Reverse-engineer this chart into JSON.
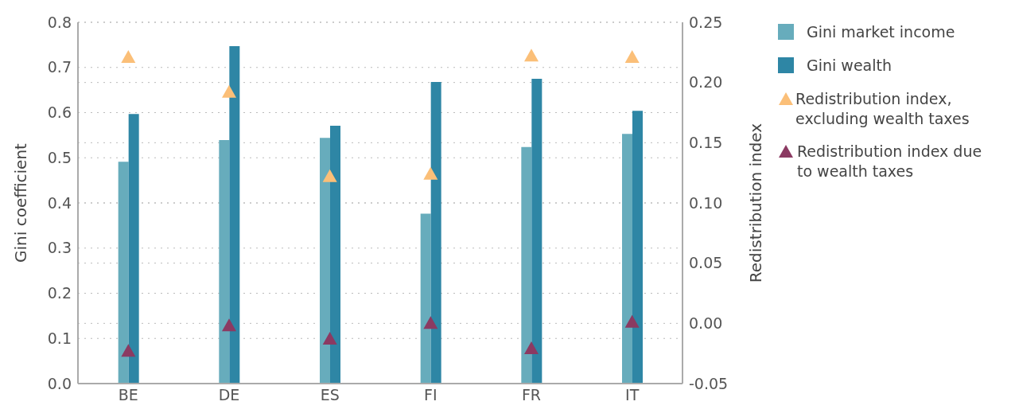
{
  "chart_data": {
    "type": "bar",
    "ylabel": "Gini coefficient",
    "y2label": "Redistribution index",
    "categories": [
      "BE",
      "DE",
      "ES",
      "FI",
      "FR",
      "IT"
    ],
    "series": [
      {
        "name": "Gini market income",
        "color": "#67acbc",
        "values": [
          0.491,
          0.539,
          0.544,
          0.376,
          0.524,
          0.553
        ]
      },
      {
        "name": "Gini wealth",
        "color": "#2e86a5",
        "values": [
          0.597,
          0.747,
          0.571,
          0.668,
          0.675,
          0.604
        ]
      },
      {
        "name": "Redistribution index, excluding wealth taxes",
        "type": "scatter",
        "axis": "y2",
        "color": "#fbbf78",
        "values": [
          0.221,
          0.192,
          0.122,
          0.124,
          0.222,
          0.221
        ]
      },
      {
        "name": "Redistribution index due to wealth taxes",
        "type": "scatter",
        "axis": "y2",
        "color": "#8b3a62",
        "values": [
          -0.023,
          -0.002,
          -0.013,
          0.0,
          -0.021,
          0.001
        ]
      }
    ],
    "ylim": [
      0,
      0.8
    ],
    "yticks": [
      {
        "value": 0,
        "label": "0.0"
      },
      0.1,
      0.2,
      0.3,
      0.4,
      0.5,
      0.6,
      0.7,
      0.8
    ],
    "y2lim": [
      -0.05,
      0.25
    ],
    "y2ticks": [
      -0.05,
      {
        "value": 0,
        "label": "0.00"
      },
      0.05,
      {
        "value": 0.1,
        "label": "0.10"
      },
      0.15,
      {
        "value": 0.2,
        "label": "0.20"
      },
      0.25
    ],
    "grid": true,
    "legend": "right",
    "marker": "triangle"
  }
}
